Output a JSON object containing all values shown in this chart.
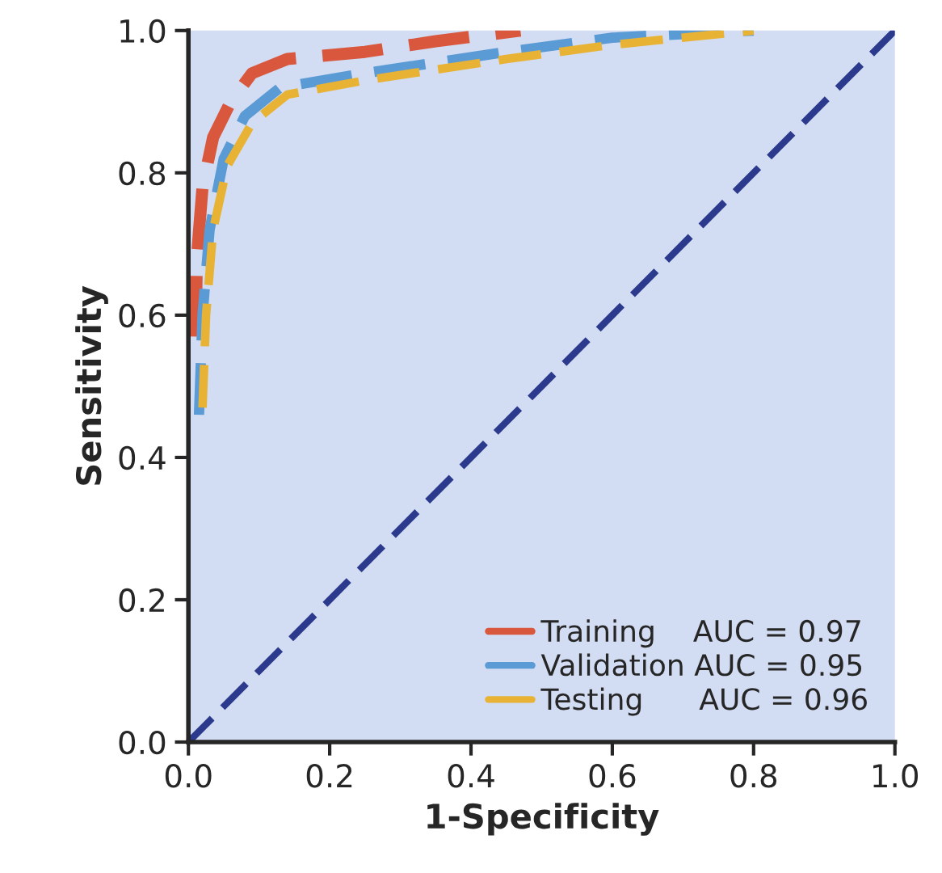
{
  "chart_data": {
    "type": "line",
    "xlabel": "1-Specificity",
    "ylabel": "Sensitivity",
    "xlim": [
      0,
      1
    ],
    "ylim": [
      0,
      1
    ],
    "xticks": [
      {
        "value": 0,
        "label": "0.0"
      },
      0.2,
      0.4,
      0.6,
      0.8,
      {
        "value": 1,
        "label": "1.0"
      }
    ],
    "yticks": [
      {
        "value": 0,
        "label": "0.0"
      },
      0.2,
      0.4,
      0.6,
      0.8,
      {
        "value": 1,
        "label": "1.0"
      }
    ],
    "grid": false,
    "legend": "bottom right",
    "line_style": "dashed",
    "marker": "none",
    "series": [
      {
        "name": "Training    AUC = 0.97",
        "color": "#d9573c",
        "x": [
          0.01,
          0.012,
          0.02,
          0.035,
          0.06,
          0.09,
          0.14,
          0.25,
          0.35,
          0.47
        ],
        "values": [
          0.57,
          0.68,
          0.78,
          0.85,
          0.9,
          0.94,
          0.96,
          0.97,
          0.985,
          1.0
        ]
      },
      {
        "name": "Validation AUC = 0.95",
        "color": "#5b9bd5",
        "x": [
          0.015,
          0.02,
          0.03,
          0.05,
          0.08,
          0.13,
          0.25,
          0.45,
          0.6,
          0.8
        ],
        "values": [
          0.46,
          0.6,
          0.72,
          0.82,
          0.88,
          0.92,
          0.94,
          0.97,
          0.99,
          1.0
        ]
      },
      {
        "name": "Testing      AUC = 0.96",
        "color": "#e8b334",
        "x": [
          0.02,
          0.025,
          0.035,
          0.055,
          0.09,
          0.14,
          0.25,
          0.45,
          0.6,
          0.8
        ],
        "values": [
          0.47,
          0.6,
          0.72,
          0.81,
          0.87,
          0.91,
          0.93,
          0.96,
          0.98,
          1.0
        ]
      },
      {
        "color": "#2b3a8c",
        "x": [
          0,
          1
        ],
        "values": [
          0,
          1
        ]
      }
    ]
  }
}
